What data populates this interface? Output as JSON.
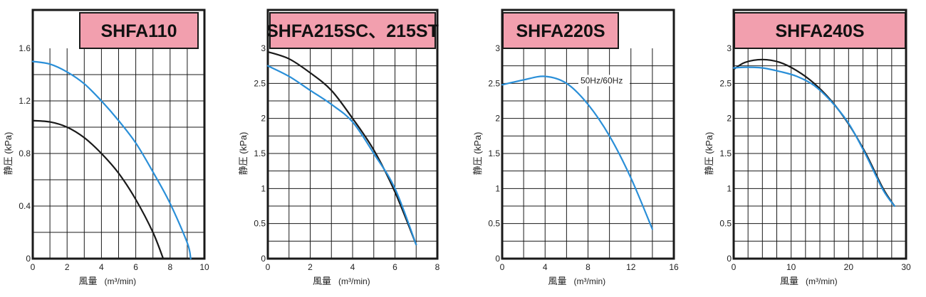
{
  "chart_data": [
    {
      "type": "line",
      "title": "SHFA110",
      "xlabel": "風量",
      "xunit": "(m³/min)",
      "ylabel": "静圧 (kPa)",
      "xlim": [
        0,
        10
      ],
      "ylim": [
        0,
        1.6
      ],
      "xticks": [
        0,
        2,
        4,
        6,
        8,
        10
      ],
      "xtick_labels": [
        "0",
        "2",
        "4",
        "6",
        "8",
        "10"
      ],
      "yticks": [
        0,
        0.4,
        0.8,
        1.2,
        1.6
      ],
      "ytick_labels": [
        "0",
        "0.4",
        "0.8",
        "1.2",
        "1.6"
      ],
      "x_grid_step": 1,
      "y_grid_step": 0.2,
      "grid": true,
      "annotations": [],
      "series": [
        {
          "color": "#1a1a1a",
          "x": [
            0,
            1,
            2,
            3,
            4,
            5,
            6,
            7,
            7.6
          ],
          "y": [
            1.05,
            1.04,
            1.0,
            0.92,
            0.8,
            0.65,
            0.45,
            0.2,
            0
          ]
        },
        {
          "color": "#2a8fd8",
          "x": [
            0,
            1,
            2,
            3,
            4,
            5,
            6,
            7,
            8,
            9,
            9.2
          ],
          "y": [
            1.5,
            1.48,
            1.42,
            1.33,
            1.2,
            1.05,
            0.88,
            0.66,
            0.42,
            0.12,
            0
          ]
        }
      ]
    },
    {
      "type": "line",
      "title": "SHFA215SC、215ST",
      "xlabel": "風量",
      "xunit": "(m³/min)",
      "ylabel": "静圧 (kPa)",
      "xlim": [
        0,
        8
      ],
      "ylim": [
        0,
        3
      ],
      "xticks": [
        0,
        2,
        4,
        6,
        8
      ],
      "xtick_labels": [
        "0",
        "2",
        "4",
        "6",
        "8"
      ],
      "yticks": [
        0,
        0.5,
        1,
        1.5,
        2,
        2.5,
        3
      ],
      "ytick_labels": [
        "0",
        "0.5",
        "1",
        "1.5",
        "2",
        "2.5",
        "3"
      ],
      "x_grid_step": 1,
      "y_grid_step": 0.25,
      "grid": true,
      "annotations": [],
      "series": [
        {
          "color": "#1a1a1a",
          "x": [
            0,
            1,
            2,
            3,
            4,
            5,
            6,
            7
          ],
          "y": [
            2.95,
            2.85,
            2.65,
            2.4,
            2.0,
            1.55,
            0.95,
            0.2
          ]
        },
        {
          "color": "#2a8fd8",
          "x": [
            0,
            1,
            2,
            3,
            4,
            5,
            6,
            7
          ],
          "y": [
            2.75,
            2.6,
            2.4,
            2.2,
            1.95,
            1.5,
            1.0,
            0.2
          ]
        }
      ]
    },
    {
      "type": "line",
      "title": "SHFA220S",
      "xlabel": "風量",
      "xunit": "(m³/min)",
      "ylabel": "静圧 (kPa)",
      "xlim": [
        0,
        16
      ],
      "ylim": [
        0,
        3
      ],
      "xticks": [
        0,
        4,
        8,
        12,
        16
      ],
      "xtick_labels": [
        "0",
        "4",
        "8",
        "12",
        "16"
      ],
      "yticks": [
        0,
        0.5,
        1,
        1.5,
        2,
        2.5,
        3
      ],
      "ytick_labels": [
        "0",
        "0.5",
        "1",
        "1.5",
        "2",
        "2.5",
        "3"
      ],
      "x_grid_step": 2,
      "y_grid_step": 0.25,
      "grid": true,
      "annotations": [
        {
          "text": "50Hz/60Hz",
          "x": 7.3,
          "y": 2.5
        }
      ],
      "series": [
        {
          "color": "#2a8fd8",
          "x": [
            0,
            2,
            4,
            6,
            8,
            10,
            12,
            14
          ],
          "y": [
            2.48,
            2.55,
            2.6,
            2.5,
            2.2,
            1.75,
            1.15,
            0.42
          ]
        }
      ]
    },
    {
      "type": "line",
      "title": "SHFA240S",
      "xlabel": "風量",
      "xunit": "(m³/min)",
      "ylabel": "静圧 (kPa)",
      "xlim": [
        0,
        30
      ],
      "ylim": [
        0,
        3
      ],
      "xticks": [
        0,
        10,
        20,
        30
      ],
      "xtick_labels": [
        "0",
        "10",
        "20",
        "30"
      ],
      "yticks": [
        0,
        0.5,
        1,
        1.5,
        2,
        2.5,
        3
      ],
      "ytick_labels": [
        "0",
        "0.5",
        "1",
        "1.5",
        "2",
        "2.5",
        "3"
      ],
      "x_grid_step": 2.5,
      "y_grid_step": 0.25,
      "grid": true,
      "annotations": [],
      "series": [
        {
          "color": "#1a1a1a",
          "x": [
            0,
            2,
            5,
            8,
            11,
            14,
            17,
            20,
            23,
            26,
            28
          ],
          "y": [
            2.7,
            2.8,
            2.84,
            2.8,
            2.68,
            2.5,
            2.25,
            1.92,
            1.5,
            1.0,
            0.75
          ]
        },
        {
          "color": "#2a8fd8",
          "x": [
            0,
            2,
            5,
            8,
            11,
            14,
            17,
            20,
            23,
            26,
            28
          ],
          "y": [
            2.72,
            2.73,
            2.72,
            2.67,
            2.6,
            2.47,
            2.24,
            1.93,
            1.48,
            0.98,
            0.75
          ]
        }
      ]
    }
  ]
}
